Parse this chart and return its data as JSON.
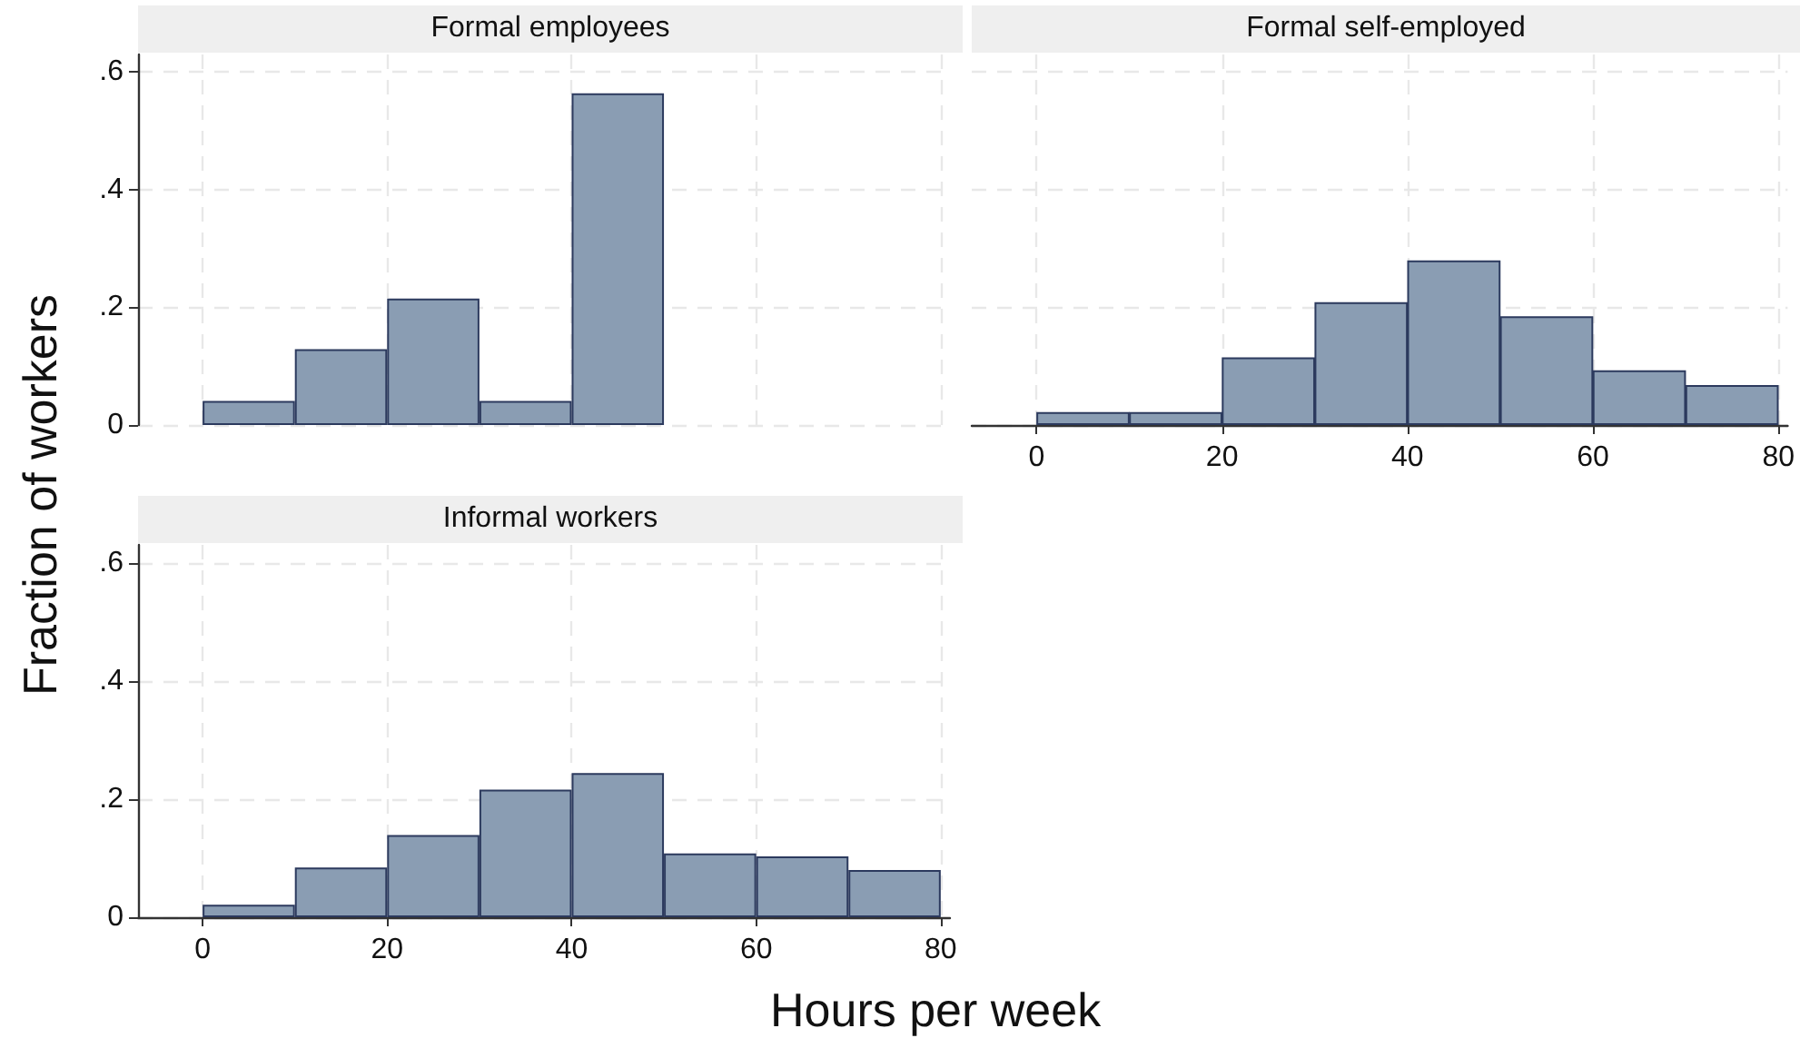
{
  "chart_data": [
    {
      "type": "histogram",
      "title": "Formal employees",
      "ylabel": "Fraction of workers",
      "color": "#8a9db3",
      "bins": [
        0,
        10,
        20,
        30,
        40,
        50
      ],
      "values": [
        0.041,
        0.129,
        0.215,
        0.041,
        0.564
      ],
      "xlim": [
        -7,
        81
      ],
      "xticks": [
        0,
        20,
        40,
        60,
        80
      ],
      "ylim": [
        0,
        0.63
      ],
      "yticks": [
        0,
        {
          "value": 0.2,
          "label": ".2"
        },
        {
          "value": 0.4,
          "label": ".4"
        },
        {
          "value": 0.6,
          "label": ".6"
        }
      ],
      "grid": true,
      "tick_labels": "y"
    },
    {
      "type": "histogram",
      "title": "Formal self-employed",
      "color": "#8a9db3",
      "bins": [
        0,
        10,
        20,
        30,
        40,
        50,
        60,
        70,
        80
      ],
      "values": [
        0.022,
        0.022,
        0.115,
        0.209,
        0.28,
        0.185,
        0.093,
        0.068
      ],
      "xlim": [
        -7,
        81
      ],
      "xticks": [
        0,
        20,
        40,
        60,
        80
      ],
      "ylim": [
        0,
        0.63
      ],
      "yticks": [
        {
          "value": 0,
          "label": null
        },
        {
          "value": 0.2,
          "label": null
        },
        {
          "value": 0.4,
          "label": null
        },
        {
          "value": 0.6,
          "label": null
        }
      ],
      "grid": true,
      "tick_labels": "x"
    },
    {
      "type": "histogram",
      "title": "Informal workers",
      "xlabel": "Hours per week",
      "color": "#8a9db3",
      "bins": [
        0,
        10,
        20,
        30,
        40,
        50,
        60,
        70,
        80
      ],
      "values": [
        0.021,
        0.084,
        0.139,
        0.216,
        0.244,
        0.108,
        0.103,
        0.08
      ],
      "xlim": [
        -7,
        81
      ],
      "xticks": [
        0,
        20,
        40,
        60,
        80
      ],
      "ylim": [
        0,
        0.63
      ],
      "yticks": [
        0,
        {
          "value": 0.2,
          "label": ".2"
        },
        {
          "value": 0.4,
          "label": ".4"
        },
        {
          "value": 0.6,
          "label": ".6"
        }
      ],
      "grid": true
    }
  ]
}
